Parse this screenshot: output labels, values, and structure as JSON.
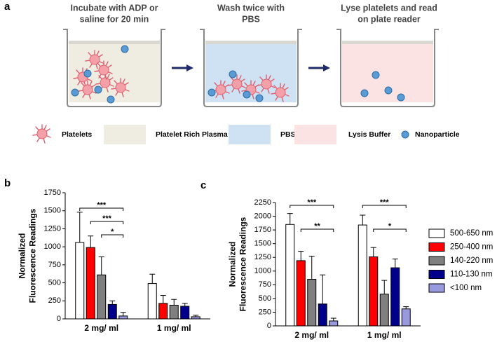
{
  "panel_a": {
    "label": "a",
    "steps": [
      {
        "title_lines": [
          "Incubate with ADP or",
          "saline for 20 min"
        ]
      },
      {
        "title_lines": [
          "Wash twice with",
          "PBS"
        ]
      },
      {
        "title_lines": [
          "Lyse platelets and read",
          "on plate reader"
        ]
      }
    ],
    "legend": [
      "Platelets",
      "Platelet  Rich  Plasma",
      "PBS",
      "Lysis  Buffer",
      "Nanoparticle"
    ]
  },
  "chart_data": [
    {
      "type": "bar",
      "label": "b",
      "ylabel": [
        "Normalized",
        "Fluorescence Readings"
      ],
      "categories": [
        "2 mg/ ml",
        "1 mg/ ml"
      ],
      "series": [
        {
          "color": "#ffffff",
          "values": [
            1060,
            490
          ],
          "errors": [
            420,
            130
          ]
        },
        {
          "color": "#ff0000",
          "values": [
            990,
            215
          ],
          "errors": [
            160,
            110
          ]
        },
        {
          "color": "#808080",
          "values": [
            610,
            190
          ],
          "errors": [
            250,
            80
          ]
        },
        {
          "color": "#00008b",
          "values": [
            200,
            175
          ],
          "errors": [
            50,
            40
          ]
        },
        {
          "color": "#9999dd",
          "values": [
            40,
            30
          ],
          "errors": [
            50,
            20
          ]
        }
      ],
      "significance": [
        [
          "***",
          "***",
          "*"
        ],
        []
      ],
      "ylim": [
        0,
        1750
      ],
      "yticks": [
        0,
        250,
        500,
        750,
        1000,
        1250,
        1500,
        1750
      ]
    },
    {
      "type": "bar",
      "label": "c",
      "ylabel": [
        "Normalized",
        "Fluorescence Readings"
      ],
      "categories": [
        "2 mg/ ml",
        "1 mg/ ml"
      ],
      "series": [
        {
          "name": "500-650 nm",
          "color": "#ffffff",
          "values": [
            1850,
            1840
          ],
          "errors": [
            200,
            180
          ]
        },
        {
          "name": "250-400 nm",
          "color": "#ff0000",
          "values": [
            1190,
            1260
          ],
          "errors": [
            170,
            170
          ]
        },
        {
          "name": "140-220 nm",
          "color": "#808080",
          "values": [
            850,
            580
          ],
          "errors": [
            420,
            250
          ]
        },
        {
          "name": "110-130 nm",
          "color": "#00008b",
          "values": [
            400,
            1060
          ],
          "errors": [
            530,
            160
          ]
        },
        {
          "name": "<100 nm",
          "color": "#9999dd",
          "values": [
            90,
            310
          ],
          "errors": [
            50,
            40
          ]
        }
      ],
      "significance": [
        [
          "***",
          "**"
        ],
        [
          "***",
          "*"
        ]
      ],
      "legend": "right",
      "ylim": [
        0,
        2250
      ],
      "yticks": [
        0,
        250,
        500,
        750,
        1000,
        1250,
        1500,
        1750,
        2000,
        2250
      ]
    }
  ]
}
